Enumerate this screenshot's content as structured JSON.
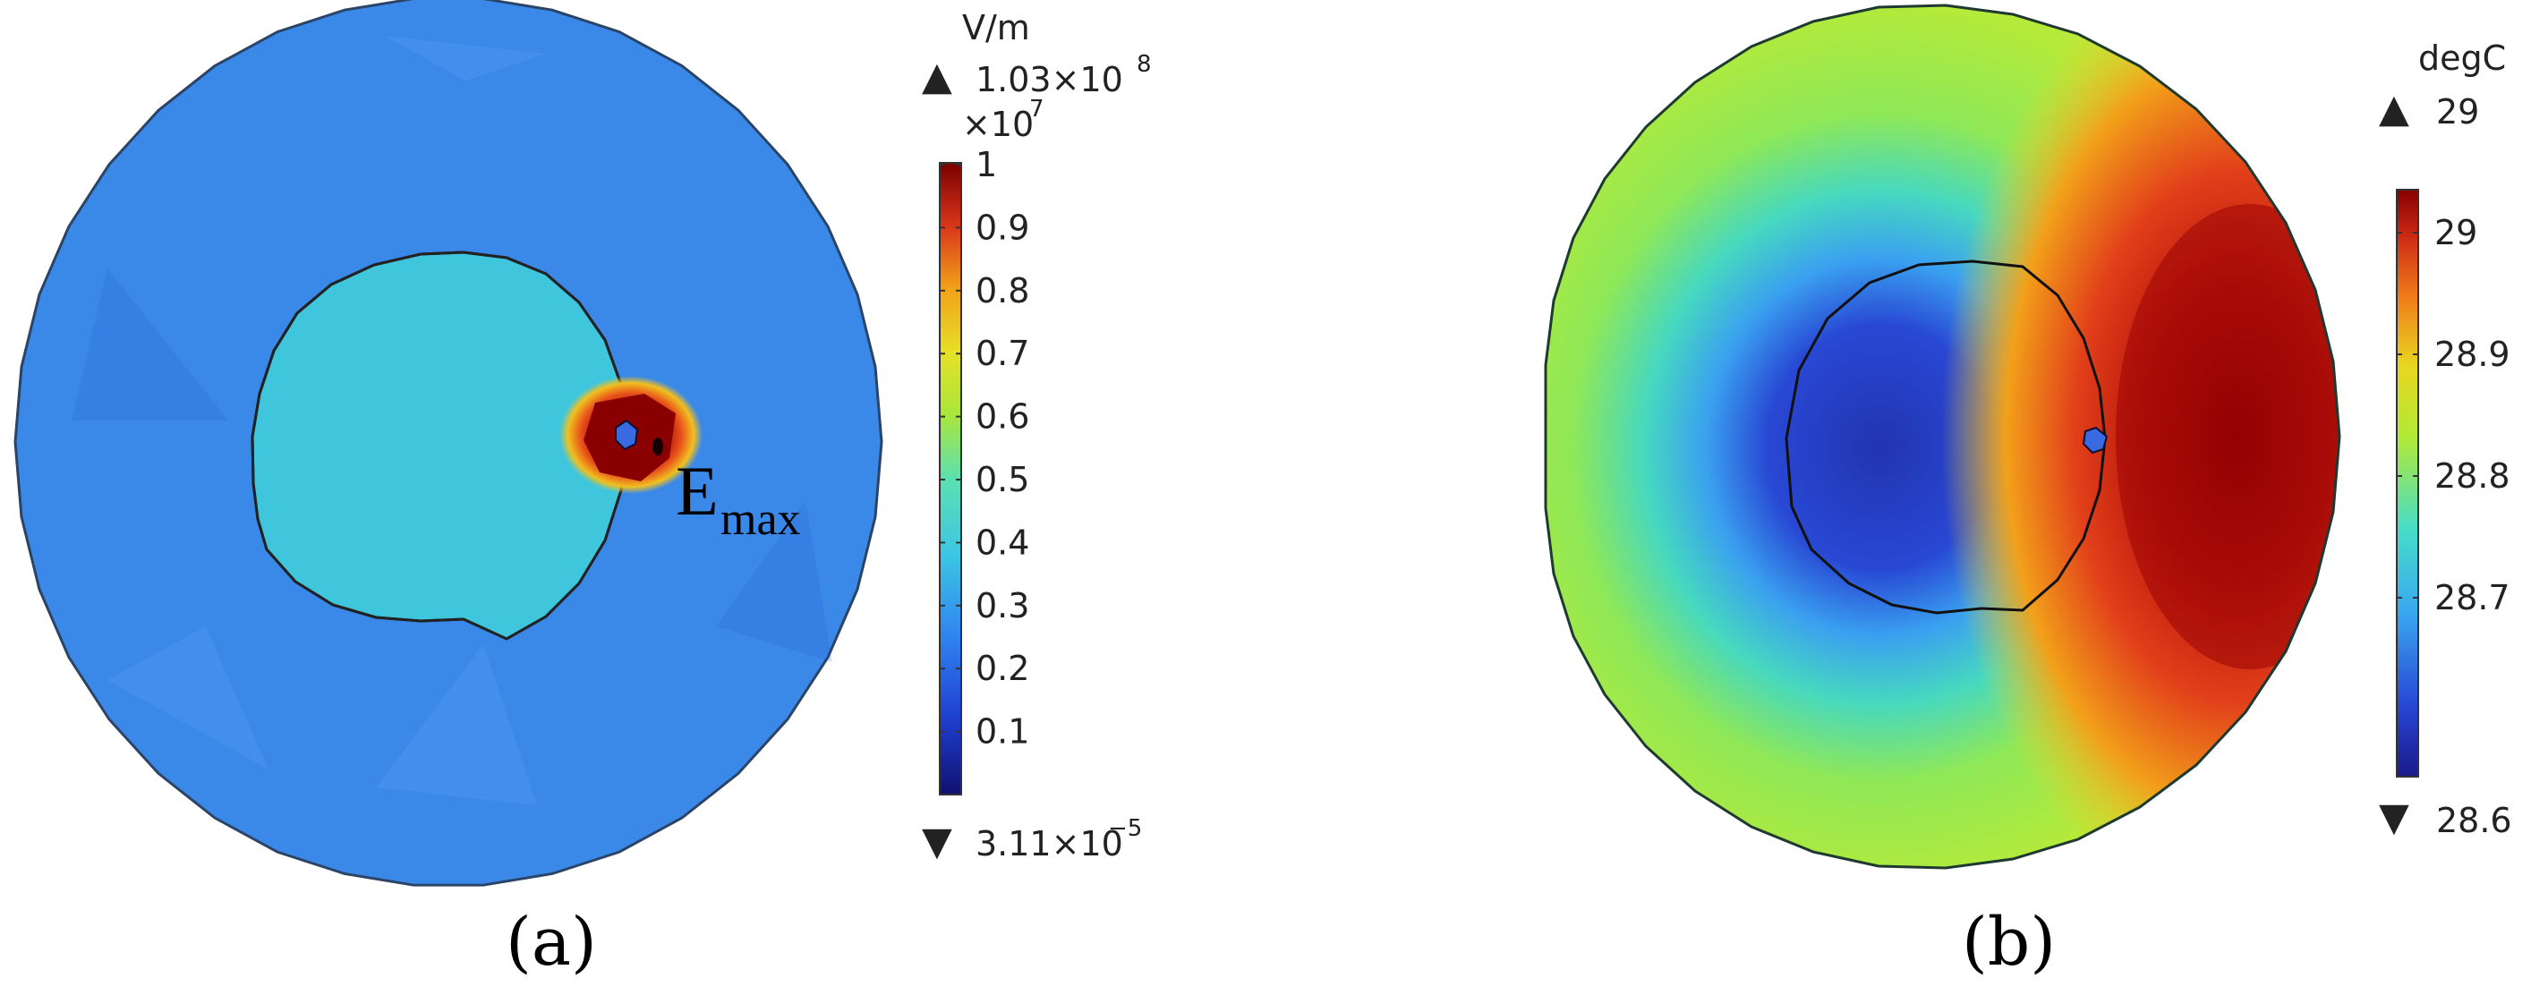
{
  "panel_a": {
    "caption": "(a)",
    "unit": "V/m",
    "max_marker": "▲",
    "max_text": "1.03×10",
    "max_exp": "8",
    "multiplier_text": "×10",
    "multiplier_exp": "7",
    "min_marker": "▼",
    "min_text": "3.11×10",
    "min_exp": "−5",
    "ticks": [
      "1",
      "0.9",
      "0.8",
      "0.7",
      "0.6",
      "0.5",
      "0.4",
      "0.3",
      "0.2",
      "0.1"
    ],
    "annotation_main": "E",
    "annotation_sub": "max",
    "colors": {
      "outer": "#3a88e8",
      "inner": "#3fc6dc",
      "hot": "#8a0000"
    }
  },
  "panel_b": {
    "caption": "(b)",
    "unit": "degC",
    "max_marker": "▲",
    "max_text": "29",
    "min_marker": "▼",
    "min_text": "28.6",
    "ticks": [
      "29",
      "28.9",
      "28.8",
      "28.7"
    ],
    "colors": {
      "cold_core": "#2436b4",
      "ring": "#a6e83c",
      "hot": "#8a0000"
    }
  }
}
